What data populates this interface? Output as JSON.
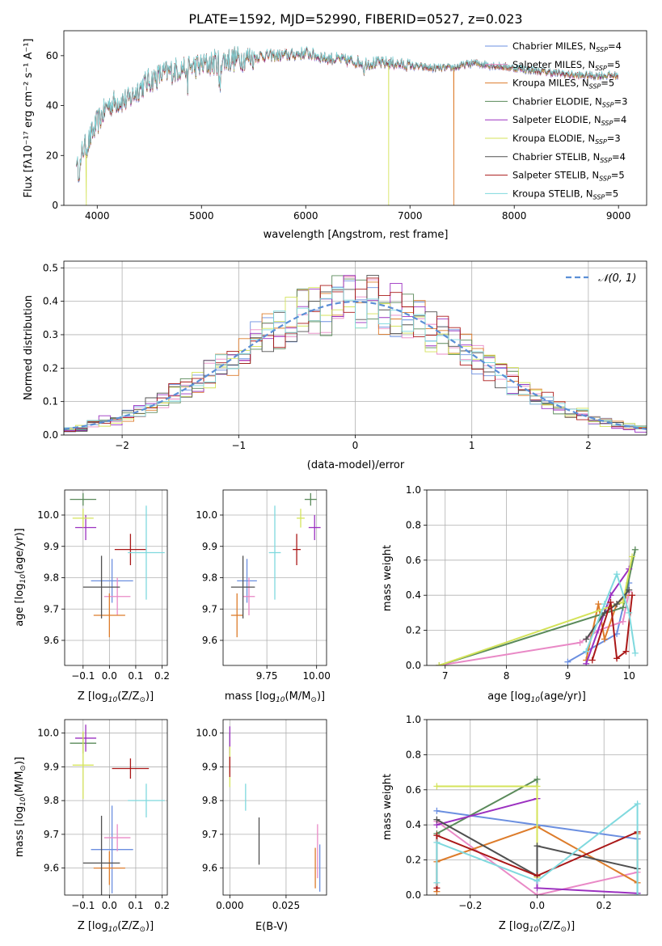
{
  "colors": [
    "#6b8fe0",
    "#e989c6",
    "#dd7c2b",
    "#5a8a5a",
    "#9b30c0",
    "#d4e35a",
    "#505050",
    "#aa1818",
    "#7fd9de"
  ],
  "chart_data": [
    {
      "type": "line",
      "title": "PLATE=1592, MJD=52990, FIBERID=0527, z=0.023",
      "xlabel": "wavelength [Angstrom, rest frame]",
      "ylabel": "Flux [f$_\\lambda$10$^{-17}$ erg cm$^{-2}$ s$^{-1}$ A$^{-1}$]",
      "ylabel_display": "Flux [fλ10⁻¹⁷ erg cm⁻² s⁻¹ A⁻¹]",
      "xlim": [
        3680,
        9270
      ],
      "ylim": [
        0,
        70
      ],
      "xticks": [
        4000,
        5000,
        6000,
        7000,
        8000,
        9000
      ],
      "yticks": [
        0,
        20,
        40,
        60
      ],
      "legend_position": "top-right",
      "legend": [
        "Chabrier MILES, N$_{SSP}$=4",
        "Salpeter MILES, N$_{SSP}$=5",
        "Kroupa MILES, N$_{SSP}$=5",
        "Chabrier ELODIE, N$_{SSP}$=3",
        "Salpeter ELODIE, N$_{SSP}$=4",
        "Kroupa ELODIE, N$_{SSP}$=3",
        "Chabrier STELIB, N$_{SSP}$=4",
        "Salpeter STELIB, N$_{SSP}$=5",
        "Kroupa STELIB, N$_{SSP}$=5"
      ],
      "legend_display": [
        [
          "Chabrier MILES, N",
          "SSP",
          "=4"
        ],
        [
          "Salpeter MILES, N",
          "SSP",
          "=5"
        ],
        [
          "Kroupa MILES, N",
          "SSP",
          "=5"
        ],
        [
          "Chabrier ELODIE, N",
          "SSP",
          "=3"
        ],
        [
          "Salpeter ELODIE, N",
          "SSP",
          "=4"
        ],
        [
          "Kroupa ELODIE, N",
          "SSP",
          "=3"
        ],
        [
          "Chabrier STELIB, N",
          "SSP",
          "=4"
        ],
        [
          "Salpeter STELIB, N",
          "SSP",
          "=5"
        ],
        [
          "Kroupa STELIB, N",
          "SSP",
          "=5"
        ]
      ],
      "continuum": {
        "x": [
          3800,
          3900,
          4000,
          4100,
          4200,
          4300,
          4400,
          4500,
          4600,
          4800,
          5000,
          5200,
          5400,
          5600,
          5800,
          6000,
          6200,
          6400,
          6600,
          6800,
          7000,
          7200,
          7400,
          7600,
          7800,
          8000,
          8200,
          8400,
          8600,
          8800,
          9000
        ],
        "y": [
          20,
          24,
          33,
          40,
          42,
          42,
          47,
          50,
          52,
          55,
          56,
          58,
          59,
          60,
          60,
          61,
          59,
          58,
          57,
          57,
          56,
          55,
          55,
          57,
          56,
          55,
          54,
          53,
          52,
          52,
          52
        ]
      },
      "drops": [
        {
          "x": 3895,
          "series": 5,
          "to": 0
        },
        {
          "x": 6795,
          "series": 5,
          "to": 0
        },
        {
          "x": 7420,
          "series": 2,
          "to": 0
        }
      ]
    },
    {
      "type": "step",
      "xlabel": "(data-model)/error",
      "ylabel": "Normed distribution",
      "xlim": [
        -2.5,
        2.5
      ],
      "ylim": [
        0,
        0.52
      ],
      "xticks": [
        -2,
        -1,
        0,
        1,
        2
      ],
      "yticks": [
        0,
        0.1,
        0.2,
        0.3,
        0.4,
        0.5
      ],
      "legend": [
        "$\\mathcal{N}(0,1)$"
      ],
      "legend_display": "𝒩(0, 1)",
      "bin_width": 0.1,
      "gaussian": {
        "mean": 0,
        "sigma": 1
      }
    },
    {
      "type": "errorbar",
      "xlabel": "Z [log$_{10}$(Z/Z$_\\odot$)]",
      "ylabel": "age  [log$_{10}$(age/yr)]",
      "xlabel_display": [
        "Z [log",
        "10",
        "(Z/Z",
        "⊙",
        ")]"
      ],
      "ylabel_display": [
        "age  [log",
        "10",
        "(age/yr)]"
      ],
      "xlim": [
        -0.17,
        0.22
      ],
      "ylim": [
        9.52,
        10.08
      ],
      "xticks": [
        -0.1,
        0.0,
        0.1,
        0.2
      ],
      "yticks": [
        9.6,
        9.7,
        9.8,
        9.9,
        10.0
      ],
      "points": [
        {
          "x": 0.01,
          "xerr": 0.08,
          "y": 9.79,
          "yerr": 0.07
        },
        {
          "x": 0.03,
          "xerr": 0.05,
          "y": 9.74,
          "yerr": 0.06
        },
        {
          "x": 0.0,
          "xerr": 0.06,
          "y": 9.68,
          "yerr": 0.07
        },
        {
          "x": -0.1,
          "xerr": 0.05,
          "y": 10.05,
          "yerr": 0.02
        },
        {
          "x": -0.09,
          "xerr": 0.04,
          "y": 9.96,
          "yerr": 0.04
        },
        {
          "x": -0.1,
          "xerr": 0.04,
          "y": 9.99,
          "yerr": 0.03
        },
        {
          "x": -0.03,
          "xerr": 0.07,
          "y": 9.77,
          "yerr": 0.1
        },
        {
          "x": 0.08,
          "xerr": 0.06,
          "y": 9.89,
          "yerr": 0.05
        },
        {
          "x": 0.14,
          "xerr": 0.07,
          "y": 9.88,
          "yerr": 0.15
        }
      ]
    },
    {
      "type": "errorbar",
      "xlabel": "mass [log$_{10}$(M/M$_\\odot$)]",
      "xlabel_display": [
        "mass [log",
        "10",
        "(M/M",
        "⊙",
        ")]"
      ],
      "xlim": [
        9.53,
        10.05
      ],
      "ylim": [
        9.52,
        10.08
      ],
      "xticks": [
        9.75,
        10.0
      ],
      "yticks": [
        9.6,
        9.7,
        9.8,
        9.9,
        10.0
      ],
      "points": [
        {
          "x": 9.65,
          "xerr": 0.05,
          "y": 9.79,
          "yerr": 0.07
        },
        {
          "x": 9.66,
          "xerr": 0.03,
          "y": 9.74,
          "yerr": 0.06
        },
        {
          "x": 9.6,
          "xerr": 0.03,
          "y": 9.68,
          "yerr": 0.07
        },
        {
          "x": 9.97,
          "xerr": 0.03,
          "y": 10.05,
          "yerr": 0.02
        },
        {
          "x": 9.99,
          "xerr": 0.03,
          "y": 9.96,
          "yerr": 0.04
        },
        {
          "x": 9.92,
          "xerr": 0.02,
          "y": 9.99,
          "yerr": 0.03
        },
        {
          "x": 9.63,
          "xerr": 0.06,
          "y": 9.77,
          "yerr": 0.1
        },
        {
          "x": 9.9,
          "xerr": 0.02,
          "y": 9.89,
          "yerr": 0.05
        },
        {
          "x": 9.79,
          "xerr": 0.03,
          "y": 9.88,
          "yerr": 0.15
        }
      ]
    },
    {
      "type": "line",
      "xlabel": "age  [log$_{10}$(age/yr)]",
      "ylabel": "mass weight",
      "xlabel_display": [
        "age  [log",
        "10",
        "(age/yr)]"
      ],
      "xlim": [
        6.7,
        10.3
      ],
      "ylim": [
        0,
        1
      ],
      "xticks": [
        7,
        8,
        9,
        10
      ],
      "yticks": [
        0.0,
        0.2,
        0.4,
        0.6,
        0.8,
        1.0
      ],
      "series": [
        {
          "x": [
            9.0,
            9.8,
            9.9,
            10.0
          ],
          "y": [
            0.02,
            0.18,
            0.33,
            0.47
          ]
        },
        {
          "x": [
            6.9,
            9.2,
            9.5,
            9.9,
            10.0
          ],
          "y": [
            0.0,
            0.13,
            0.2,
            0.25,
            0.42
          ]
        },
        {
          "x": [
            9.3,
            9.5,
            9.6,
            9.8,
            9.95
          ],
          "y": [
            0.03,
            0.35,
            0.15,
            0.35,
            0.4
          ]
        },
        {
          "x": [
            6.9,
            9.9,
            10.1
          ],
          "y": [
            0.0,
            0.33,
            0.66
          ]
        },
        {
          "x": [
            9.3,
            9.7,
            10.0
          ],
          "y": [
            0.01,
            0.4,
            0.55
          ]
        },
        {
          "x": [
            6.9,
            9.9,
            10.05
          ],
          "y": [
            0.0,
            0.36,
            0.62
          ]
        },
        {
          "x": [
            9.3,
            9.6,
            9.8,
            10.0
          ],
          "y": [
            0.15,
            0.3,
            0.35,
            0.43
          ]
        },
        {
          "x": [
            9.4,
            9.7,
            9.8,
            9.95,
            10.05
          ],
          "y": [
            0.03,
            0.36,
            0.04,
            0.08,
            0.4
          ]
        },
        {
          "x": [
            9.3,
            9.6,
            9.8,
            10.0,
            10.1
          ],
          "y": [
            0.08,
            0.35,
            0.52,
            0.3,
            0.07
          ]
        }
      ]
    },
    {
      "type": "errorbar",
      "xlabel": "Z [log$_{10}$(Z/Z$_\\odot$)]",
      "ylabel": "mass [log$_{10}$(M/M$_\\odot$)]",
      "xlabel_display": [
        "Z [log",
        "10",
        "(Z/Z",
        "⊙",
        ")]"
      ],
      "ylabel_display": [
        "mass [log",
        "10",
        "(M/M",
        "⊙",
        ")]"
      ],
      "xlim": [
        -0.17,
        0.22
      ],
      "ylim": [
        9.52,
        10.04
      ],
      "xticks": [
        -0.1,
        0.0,
        0.1,
        0.2
      ],
      "yticks": [
        9.6,
        9.7,
        9.8,
        9.9,
        10.0
      ],
      "points": [
        {
          "x": 0.01,
          "xerr": 0.08,
          "y": 9.655,
          "yerr": 0.13
        },
        {
          "x": 0.03,
          "xerr": 0.05,
          "y": 9.69,
          "yerr": 0.04
        },
        {
          "x": 0.0,
          "xerr": 0.06,
          "y": 9.6,
          "yerr": 0.05
        },
        {
          "x": -0.1,
          "xerr": 0.05,
          "y": 9.97,
          "yerr": 0.03
        },
        {
          "x": -0.09,
          "xerr": 0.04,
          "y": 9.985,
          "yerr": 0.04
        },
        {
          "x": -0.1,
          "xerr": 0.04,
          "y": 9.905,
          "yerr": 0.1
        },
        {
          "x": -0.03,
          "xerr": 0.07,
          "y": 9.615,
          "yerr": 0.14
        },
        {
          "x": 0.08,
          "xerr": 0.07,
          "y": 9.895,
          "yerr": 0.03
        },
        {
          "x": 0.14,
          "xerr": 0.07,
          "y": 9.8,
          "yerr": 0.05
        }
      ]
    },
    {
      "type": "errorbar",
      "xlabel": "E(B-V)",
      "xlim": [
        -0.003,
        0.043
      ],
      "ylim": [
        9.52,
        10.04
      ],
      "xticks": [
        0.0,
        0.025
      ],
      "yticks": [
        9.6,
        9.7,
        9.8,
        9.9,
        10.0
      ],
      "points": [
        {
          "x": 0.04,
          "xerr": 0,
          "y": 9.6,
          "yerr": 0.07
        },
        {
          "x": 0.039,
          "xerr": 0,
          "y": 9.65,
          "yerr": 0.08
        },
        {
          "x": 0.038,
          "xerr": 0,
          "y": 9.6,
          "yerr": 0.06
        },
        {
          "x": 0.0,
          "xerr": 0,
          "y": 9.97,
          "yerr": 0.03
        },
        {
          "x": 0.0,
          "xerr": 0,
          "y": 9.95,
          "yerr": 0.07
        },
        {
          "x": 0.0,
          "xerr": 0,
          "y": 9.9,
          "yerr": 0.06
        },
        {
          "x": 0.013,
          "xerr": 0,
          "y": 9.68,
          "yerr": 0.07
        },
        {
          "x": 0.0,
          "xerr": 0,
          "y": 9.9,
          "yerr": 0.03
        },
        {
          "x": 0.007,
          "xerr": 0,
          "y": 9.81,
          "yerr": 0.04
        }
      ]
    },
    {
      "type": "line",
      "xlabel": "Z [log$_{10}$(Z/Z$_\\odot$)]",
      "ylabel": "mass weight",
      "xlabel_display": [
        "Z [log",
        "10",
        "(Z/Z",
        "⊙",
        ")]"
      ],
      "xlim": [
        -0.33,
        0.33
      ],
      "ylim": [
        0,
        1
      ],
      "xticks": [
        -0.2,
        0.0,
        0.2
      ],
      "yticks": [
        0.0,
        0.2,
        0.4,
        0.6,
        0.8,
        1.0
      ],
      "series": [
        {
          "x": [
            -0.3,
            0.3,
            0.3
          ],
          "y": [
            0.48,
            0.32,
            0.01
          ]
        },
        {
          "x": [
            -0.3,
            0.0,
            0.3
          ],
          "y": [
            0.42,
            0.0,
            0.13
          ]
        },
        {
          "x": [
            -0.3,
            -0.3,
            0.0,
            0.3,
            0.3
          ],
          "y": [
            0.02,
            0.19,
            0.39,
            0.07,
            0.35
          ]
        },
        {
          "x": [
            -0.3,
            0.0,
            0.0
          ],
          "y": [
            0.35,
            0.66,
            0.11
          ]
        },
        {
          "x": [
            -0.3,
            0.0,
            0.0,
            0.3
          ],
          "y": [
            0.4,
            0.55,
            0.04,
            0.01
          ]
        },
        {
          "x": [
            -0.3,
            0.0,
            0.0
          ],
          "y": [
            0.62,
            0.62,
            0.1
          ]
        },
        {
          "x": [
            -0.3,
            0.0,
            0.0,
            0.3
          ],
          "y": [
            0.43,
            0.11,
            0.28,
            0.15
          ]
        },
        {
          "x": [
            -0.3,
            -0.3,
            0.0,
            0.3
          ],
          "y": [
            0.04,
            0.34,
            0.11,
            0.36
          ]
        },
        {
          "x": [
            -0.3,
            -0.3,
            0.0,
            0.3,
            0.3
          ],
          "y": [
            0.07,
            0.3,
            0.08,
            0.52,
            0.0
          ]
        }
      ]
    }
  ]
}
